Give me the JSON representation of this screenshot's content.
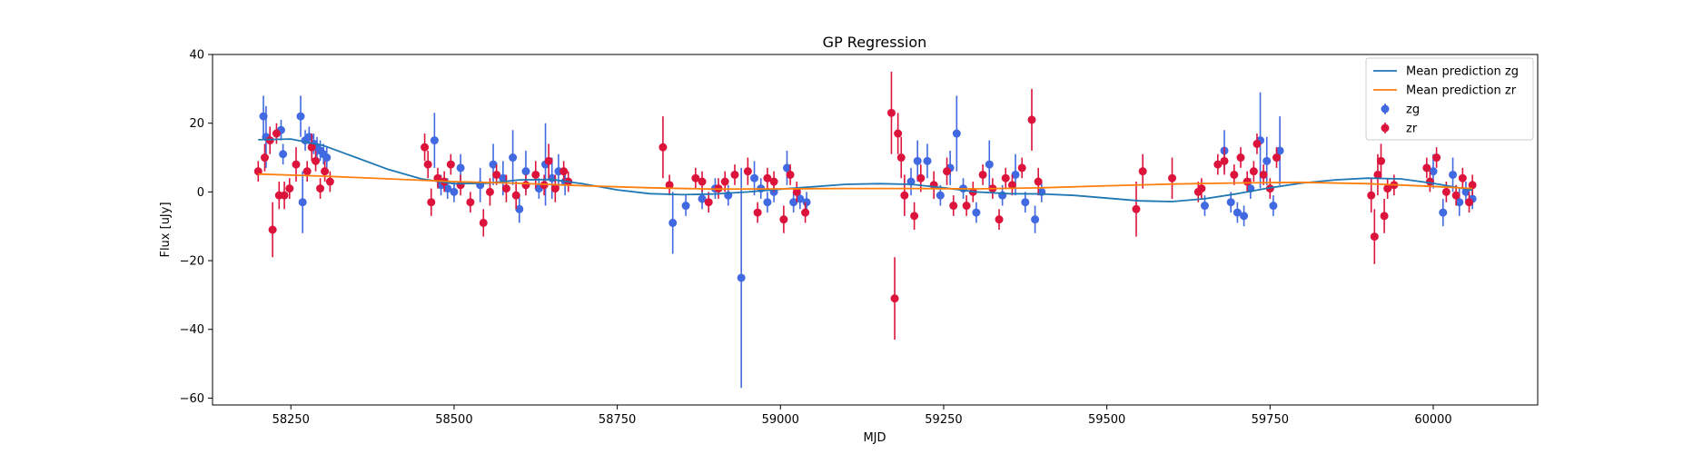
{
  "chart_data": {
    "type": "scatter",
    "title": "GP Regression",
    "xlabel": "MJD",
    "ylabel": "Flux [uJy]",
    "xlim": [
      58130,
      60160
    ],
    "ylim": [
      -62,
      40
    ],
    "xticks": [
      58250,
      58500,
      58750,
      59000,
      59250,
      59500,
      59750,
      60000
    ],
    "yticks": [
      -60,
      -40,
      -20,
      0,
      20,
      40
    ],
    "grid": false,
    "legend_position": "top-right",
    "series": [
      {
        "name": "Mean prediction zg",
        "kind": "line",
        "color": "#1f77b4",
        "x": [
          58200,
          58250,
          58300,
          58350,
          58400,
          58450,
          58500,
          58550,
          58600,
          58650,
          58700,
          58750,
          58800,
          58850,
          58900,
          58950,
          59000,
          59050,
          59100,
          59150,
          59200,
          59250,
          59300,
          59350,
          59400,
          59450,
          59500,
          59550,
          59600,
          59650,
          59700,
          59750,
          59800,
          59850,
          59900,
          59950,
          60000,
          60060
        ],
        "y": [
          15.2,
          15.4,
          13.5,
          10,
          6.5,
          3.8,
          2.4,
          2.5,
          3.5,
          3.6,
          2.3,
          0.6,
          -0.5,
          -0.8,
          -0.6,
          0,
          0.8,
          1.5,
          2.2,
          2.4,
          2.2,
          1.2,
          0,
          -0.5,
          -0.6,
          -1,
          -1.8,
          -2.6,
          -2.8,
          -2,
          -0.5,
          1.2,
          2.6,
          3.5,
          4,
          3.8,
          2.5,
          0.5
        ]
      },
      {
        "name": "Mean prediction zr",
        "kind": "line",
        "color": "#ff7f0e",
        "x": [
          58200,
          58300,
          58400,
          58500,
          58600,
          58700,
          58800,
          58900,
          59000,
          59100,
          59200,
          59300,
          59400,
          59500,
          59600,
          59700,
          59800,
          59900,
          60000,
          60060
        ],
        "y": [
          5.2,
          4.6,
          3.8,
          3.0,
          2.5,
          1.8,
          1.2,
          0.8,
          0.9,
          1.0,
          1.0,
          0.9,
          1.2,
          1.8,
          2.3,
          2.6,
          2.8,
          2.4,
          1.6,
          1.0
        ]
      },
      {
        "name": "zg",
        "kind": "errorbar",
        "color": "#4169e1",
        "x": [
          58208,
          58212,
          58235,
          58238,
          58265,
          58268,
          58272,
          58278,
          58285,
          58290,
          58295,
          58300,
          58305,
          58470,
          58480,
          58490,
          58500,
          58510,
          58540,
          58560,
          58575,
          58590,
          58600,
          58610,
          58630,
          58640,
          58650,
          58660,
          58670,
          58835,
          58855,
          58880,
          58900,
          58920,
          58940,
          58960,
          58970,
          58980,
          58990,
          59010,
          59020,
          59030,
          59040,
          59200,
          59210,
          59225,
          59245,
          59260,
          59270,
          59280,
          59300,
          59320,
          59340,
          59360,
          59375,
          59390,
          59400,
          59650,
          59680,
          59690,
          59700,
          59710,
          59720,
          59735,
          59745,
          59755,
          59765,
          60000,
          60015,
          60030,
          60040,
          60050,
          60060
        ],
        "y": [
          22,
          16,
          18,
          11,
          22,
          -3,
          15,
          16,
          14,
          13,
          12,
          11,
          10,
          15,
          2,
          1,
          0,
          7,
          2,
          8,
          4,
          10,
          -5,
          6,
          1,
          8,
          4,
          6,
          3,
          -9,
          -4,
          -2,
          1,
          -1,
          -25,
          4,
          1,
          -3,
          0,
          7,
          -3,
          -2,
          -3,
          3,
          9,
          9,
          -1,
          7,
          17,
          1,
          -6,
          8,
          -1,
          5,
          -3,
          -8,
          0,
          -4,
          12,
          -3,
          -6,
          -7,
          1,
          15,
          9,
          -4,
          12,
          6,
          -6,
          5,
          -3,
          0,
          -2
        ],
        "err": [
          6,
          9,
          3,
          3,
          6,
          9,
          3,
          3,
          3,
          3,
          3,
          3,
          3,
          8,
          3,
          3,
          3,
          4,
          5,
          6,
          5,
          8,
          4,
          6,
          3,
          12,
          6,
          5,
          4,
          9,
          3,
          3,
          3,
          3,
          32,
          5,
          3,
          3,
          3,
          5,
          3,
          3,
          3,
          4,
          6,
          5,
          3,
          5,
          11,
          3,
          3,
          7,
          3,
          6,
          3,
          4,
          3,
          3,
          6,
          3,
          3,
          3,
          3,
          14,
          7,
          3,
          10,
          5,
          4,
          5,
          4,
          3,
          3
        ]
      },
      {
        "name": "zr",
        "kind": "errorbar",
        "color": "#dc143c",
        "x": [
          58200,
          58210,
          58218,
          58222,
          58228,
          58232,
          58240,
          58248,
          58258,
          58275,
          58282,
          58288,
          58295,
          58302,
          58310,
          58455,
          58460,
          58465,
          58475,
          58485,
          58495,
          58510,
          58525,
          58545,
          58555,
          58565,
          58580,
          58595,
          58610,
          58625,
          58638,
          58645,
          58655,
          58668,
          58675,
          58820,
          58830,
          58870,
          58880,
          58890,
          58905,
          58915,
          58930,
          58950,
          58965,
          58980,
          58990,
          59005,
          59015,
          59025,
          59038,
          59170,
          59175,
          59180,
          59185,
          59190,
          59205,
          59215,
          59235,
          59255,
          59265,
          59285,
          59295,
          59310,
          59325,
          59335,
          59345,
          59355,
          59370,
          59385,
          59395,
          59545,
          59555,
          59600,
          59640,
          59645,
          59670,
          59680,
          59695,
          59705,
          59715,
          59725,
          59730,
          59740,
          59750,
          59760,
          59905,
          59910,
          59915,
          59920,
          59925,
          59930,
          59940,
          59990,
          59995,
          60005,
          60020,
          60035,
          60045,
          60055,
          60060
        ],
        "y": [
          6,
          10,
          15,
          -11,
          17,
          -1,
          -1,
          1,
          8,
          6,
          13,
          9,
          1,
          6,
          3,
          13,
          8,
          -3,
          4,
          3,
          8,
          2,
          -3,
          -9,
          0,
          5,
          1,
          -1,
          2,
          5,
          2,
          9,
          1,
          6,
          3,
          13,
          2,
          4,
          3,
          -3,
          1,
          3,
          5,
          6,
          -6,
          4,
          3,
          -8,
          5,
          0,
          -6,
          23,
          -31,
          17,
          10,
          -1,
          -7,
          4,
          2,
          6,
          -4,
          -4,
          0,
          5,
          1,
          -8,
          4,
          2,
          7,
          21,
          3,
          -5,
          6,
          4,
          0,
          1,
          8,
          9,
          5,
          10,
          3,
          6,
          14,
          5,
          1,
          10,
          -1,
          -13,
          5,
          9,
          -7,
          1,
          2,
          7,
          3,
          10,
          0,
          -1,
          4,
          -3,
          2
        ],
        "err": [
          3,
          4,
          4,
          8,
          3,
          4,
          4,
          3,
          5,
          3,
          4,
          3,
          3,
          3,
          3,
          4,
          4,
          4,
          3,
          3,
          3,
          3,
          3,
          4,
          4,
          3,
          4,
          4,
          3,
          4,
          3,
          5,
          4,
          3,
          3,
          9,
          3,
          3,
          3,
          3,
          3,
          3,
          3,
          4,
          3,
          3,
          3,
          4,
          3,
          3,
          3,
          12,
          12,
          6,
          6,
          6,
          4,
          4,
          4,
          4,
          3,
          3,
          3,
          3,
          3,
          3,
          3,
          3,
          3,
          9,
          4,
          8,
          5,
          6,
          3,
          3,
          3,
          4,
          3,
          3,
          3,
          3,
          3,
          3,
          3,
          3,
          5,
          8,
          6,
          5,
          5,
          3,
          3,
          3,
          3,
          3,
          3,
          3,
          3,
          3,
          3
        ]
      }
    ]
  }
}
